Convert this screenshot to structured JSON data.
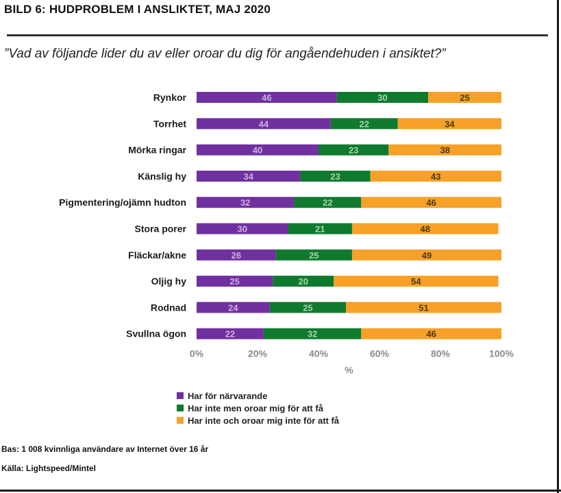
{
  "title": "BILD 6: HUDPROBLEM I ANSLIKTET, MAJ 2020",
  "question": "”Vad av följande lider du av eller oroar du dig för angåendehuden i ansiktet?”",
  "colors": {
    "current": "#7030a0",
    "not_worried": "#0f7a2e",
    "none": "#f7a128"
  },
  "chart_data": {
    "type": "bar",
    "orientation": "horizontal",
    "stacked": true,
    "categories": [
      "Rynkor",
      "Torrhet",
      "Mörka ringar",
      "Känslig hy",
      "Pigmentering/ojämn hudton",
      "Stora porer",
      "Fläckar/akne",
      "Oljig hy",
      "Rodnad",
      "Svullna ögon"
    ],
    "series": [
      {
        "name": "Har för närvarande",
        "values": [
          46,
          44,
          40,
          34,
          32,
          30,
          26,
          25,
          24,
          22
        ]
      },
      {
        "name": "Har inte men oroar mig för att få",
        "values": [
          30,
          22,
          23,
          23,
          22,
          21,
          25,
          20,
          25,
          32
        ]
      },
      {
        "name": "Har inte och oroar mig inte för att få",
        "values": [
          25,
          34,
          38,
          43,
          46,
          48,
          49,
          54,
          51,
          46
        ]
      }
    ],
    "xlim": [
      0,
      100
    ],
    "x_ticks": [
      "0%",
      "20%",
      "40%",
      "60%",
      "80%",
      "100%"
    ],
    "xlabel": "%",
    "legend_position": "bottom"
  },
  "footer": {
    "base": "Bas: 1 008 kvinnliga användare av Internet över 16 år",
    "source": "Källa: Lightspeed/Mintel"
  }
}
